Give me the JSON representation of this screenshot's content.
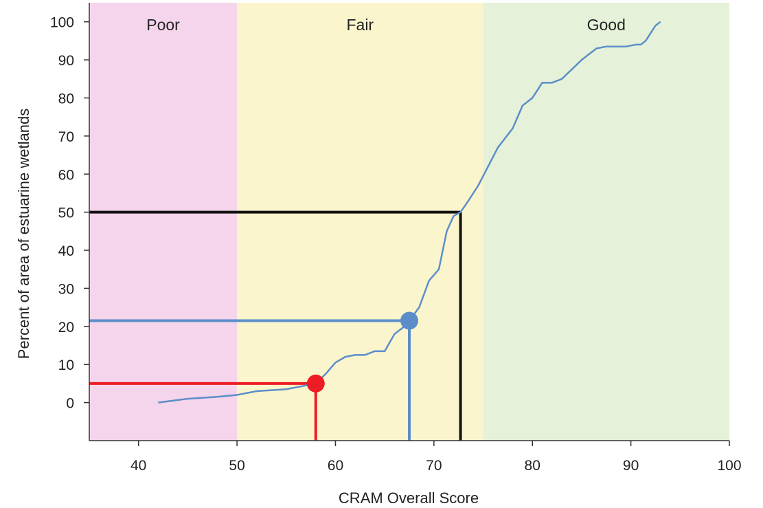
{
  "chart_data": {
    "type": "line",
    "title": "",
    "xlabel": "CRAM Overall Score",
    "ylabel": "Percent of area of estuarine wetlands",
    "xlim": [
      35,
      100
    ],
    "ylim": [
      -10,
      105
    ],
    "x_ticks": [
      40,
      50,
      60,
      70,
      80,
      90,
      100
    ],
    "y_ticks": [
      0,
      10,
      20,
      30,
      40,
      50,
      60,
      70,
      80,
      90,
      100
    ],
    "grid": false,
    "bands": [
      {
        "label": "Poor",
        "from": 35,
        "to": 50,
        "color": "#f5d5ec"
      },
      {
        "label": "Fair",
        "from": 50,
        "to": 75,
        "color": "#fbf5cd"
      },
      {
        "label": "Good",
        "from": 75,
        "to": 100,
        "color": "#e6f1d9"
      }
    ],
    "series": [
      {
        "color": "#5b8ec9",
        "x": [
          42,
          45,
          48,
          50,
          52,
          55,
          57,
          58,
          59,
          60,
          61,
          62,
          63,
          64,
          65,
          66,
          67,
          67.5,
          68.5,
          69.5,
          70.5,
          71.3,
          72,
          72.7,
          73.5,
          74.5,
          75.5,
          76.5,
          78,
          79,
          80,
          81,
          82,
          83,
          85,
          86.5,
          87.5,
          88.5,
          89.5,
          90.5,
          91,
          91.5,
          92,
          92.5,
          93
        ],
        "y": [
          0,
          1,
          1.5,
          2,
          3,
          3.5,
          4.5,
          5,
          7.5,
          10.5,
          12,
          12.5,
          12.5,
          13.5,
          13.5,
          18,
          20,
          21.5,
          25,
          32,
          35,
          45,
          49,
          50,
          53,
          57,
          62,
          67,
          72,
          78,
          80,
          84,
          84,
          85,
          90,
          93,
          93.5,
          93.5,
          93.5,
          94,
          94,
          95,
          97,
          99,
          100
        ]
      }
    ],
    "annotations": [
      {
        "x": 58,
        "y": 5,
        "color": "#ee1c24",
        "marker": true
      },
      {
        "x": 67.5,
        "y": 21.5,
        "color": "#5b8ec9",
        "marker": true
      },
      {
        "x": 72.7,
        "y": 50,
        "color": "#111111",
        "marker": false
      }
    ]
  }
}
